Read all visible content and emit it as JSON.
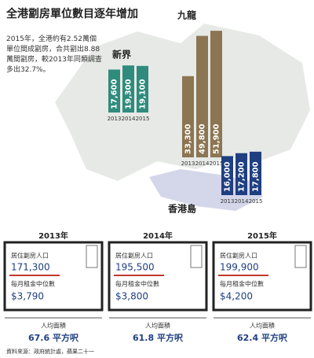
{
  "chart_data": {
    "type": "bar",
    "title": "全港劏房單位數目逐年增加",
    "note": "2015年，全港約有2.52萬個單位間成劏房，合共劏出8.88萬間劏房，較2013年同類調查多出32.7%。",
    "categories": [
      "2013",
      "2014",
      "2015"
    ],
    "series": [
      {
        "name": "新界",
        "color": "#2f8c7c",
        "values": [
          17600,
          19300,
          19100
        ],
        "value_labels": [
          "17,600",
          "19,300",
          "19,100"
        ]
      },
      {
        "name": "九龍",
        "color": "#8c7552",
        "values": [
          33300,
          49800,
          51900
        ],
        "value_labels": [
          "33,300",
          "49,800",
          "51,900"
        ]
      },
      {
        "name": "香港島",
        "color": "#1f3f80",
        "values": [
          16000,
          17200,
          17800
        ],
        "value_labels": [
          "16,000",
          "17,200",
          "17,800"
        ]
      }
    ]
  },
  "panels": [
    {
      "year": "2013年",
      "population_label": "居住劏房人口",
      "population": "171,300",
      "rent_label": "每月租金中位數",
      "rent": "$3,790",
      "area_label": "人均面積",
      "area": "67.6 平方呎"
    },
    {
      "year": "2014年",
      "population_label": "居住劏房人口",
      "population": "195,500",
      "rent_label": "每月租金中位數",
      "rent": "$3,800",
      "area_label": "人均面積",
      "area": "61.8 平方呎"
    },
    {
      "year": "2015年",
      "population_label": "居住劏房人口",
      "population": "199,900",
      "rent_label": "每月租金中位數",
      "rent": "$4,200",
      "area_label": "人均面積",
      "area": "62.4 平方呎"
    }
  ],
  "source": "資料來源：政府統計處，蘋果二十一"
}
